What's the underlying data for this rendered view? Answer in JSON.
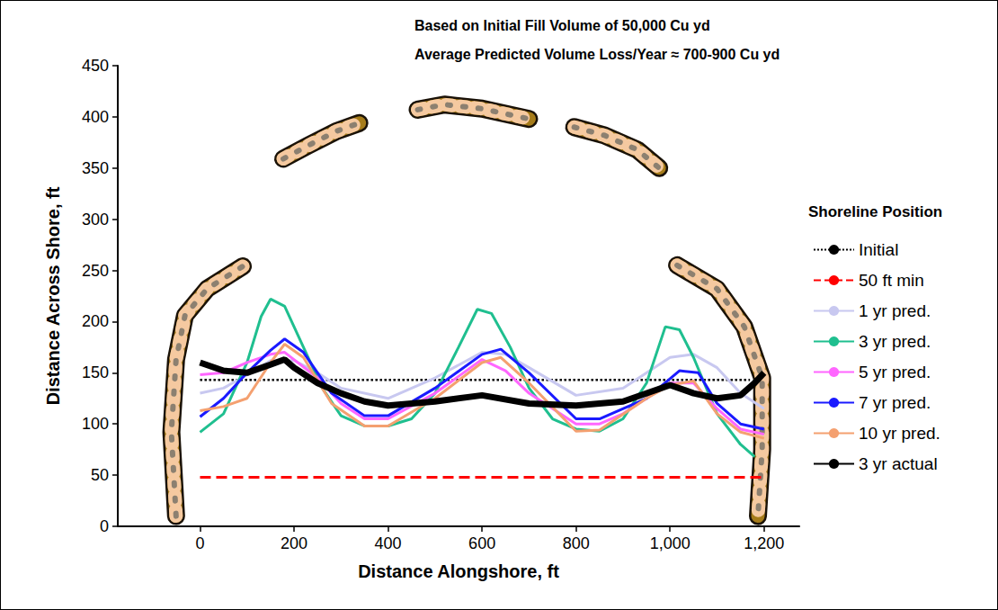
{
  "chart_data": {
    "type": "line",
    "title": "Based on Initial Fill Volume of 50,000 Cu yd",
    "subtitle": "Average Predicted Volume Loss/Year ≈ 700-900 Cu yd",
    "x_label": "Distance Alongshore, ft",
    "y_label": "Distance Across Shore, ft",
    "legend_title": "Shoreline Position",
    "legend": "right",
    "grid": false,
    "xlim": [
      -175,
      1275
    ],
    "xticks": [
      0,
      200,
      400,
      600,
      800,
      1000,
      1200
    ],
    "ylim": [
      0,
      450
    ],
    "yticks": [
      0,
      50,
      100,
      150,
      200,
      250,
      300,
      350,
      400,
      450
    ],
    "series": [
      {
        "name": "Initial",
        "color": "#000000",
        "line_style": "dotted",
        "x": [
          0,
          1170
        ],
        "values": [
          143,
          143
        ]
      },
      {
        "name": "50 ft min",
        "color": "#ff0000",
        "line_style": "dashed",
        "x": [
          0,
          1200
        ],
        "values": [
          48,
          48
        ]
      },
      {
        "name": "1 yr pred.",
        "color": "#c8c8f0",
        "line_style": "solid",
        "x": [
          0,
          50,
          100,
          150,
          200,
          250,
          300,
          400,
          500,
          600,
          650,
          700,
          800,
          900,
          1000,
          1050,
          1100,
          1150,
          1200
        ],
        "values": [
          130,
          135,
          148,
          162,
          162,
          150,
          135,
          125,
          145,
          170,
          168,
          155,
          128,
          135,
          165,
          168,
          155,
          130,
          115
        ]
      },
      {
        "name": "3 yr pred.",
        "color": "#1fbf8f",
        "line_style": "solid",
        "x": [
          0,
          50,
          100,
          130,
          150,
          180,
          220,
          260,
          300,
          350,
          400,
          450,
          500,
          550,
          590,
          620,
          660,
          700,
          750,
          800,
          850,
          900,
          950,
          990,
          1020,
          1050,
          1100,
          1150,
          1180
        ],
        "values": [
          92,
          110,
          160,
          205,
          222,
          215,
          175,
          135,
          108,
          98,
          98,
          105,
          130,
          175,
          212,
          208,
          175,
          135,
          105,
          95,
          93,
          105,
          140,
          195,
          192,
          165,
          110,
          80,
          68
        ]
      },
      {
        "name": "5 yr pred.",
        "color": "#ff66ff",
        "line_style": "solid",
        "x": [
          0,
          50,
          100,
          150,
          180,
          250,
          300,
          350,
          400,
          500,
          600,
          650,
          700,
          800,
          850,
          900,
          1000,
          1050,
          1100,
          1150,
          1200
        ],
        "values": [
          148,
          150,
          160,
          168,
          170,
          145,
          120,
          105,
          105,
          130,
          163,
          152,
          130,
          100,
          100,
          110,
          140,
          140,
          115,
          95,
          90
        ]
      },
      {
        "name": "7 yr pred.",
        "color": "#1a1aff",
        "line_style": "solid",
        "x": [
          0,
          50,
          100,
          150,
          180,
          220,
          280,
          350,
          400,
          500,
          600,
          640,
          700,
          800,
          850,
          950,
          1020,
          1060,
          1100,
          1150,
          1200
        ],
        "values": [
          107,
          125,
          150,
          172,
          183,
          170,
          130,
          108,
          108,
          135,
          168,
          173,
          150,
          105,
          105,
          125,
          152,
          150,
          120,
          100,
          95
        ]
      },
      {
        "name": "10 yr pred.",
        "color": "#f4a070",
        "line_style": "solid",
        "x": [
          0,
          50,
          100,
          150,
          180,
          220,
          280,
          350,
          400,
          500,
          600,
          640,
          700,
          800,
          850,
          950,
          1000,
          1050,
          1100,
          1150,
          1200
        ],
        "values": [
          113,
          117,
          125,
          160,
          178,
          165,
          120,
          98,
          98,
          125,
          160,
          165,
          140,
          93,
          94,
          125,
          138,
          142,
          110,
          92,
          86
        ]
      },
      {
        "name": "3 yr actual",
        "color": "#000000",
        "line_style": "solid",
        "x": [
          0,
          50,
          100,
          150,
          180,
          200,
          250,
          300,
          350,
          400,
          500,
          600,
          700,
          800,
          900,
          1000,
          1050,
          1100,
          1150,
          1180,
          1200
        ],
        "values": [
          160,
          152,
          150,
          158,
          163,
          155,
          140,
          130,
          122,
          118,
          122,
          128,
          120,
          118,
          122,
          138,
          130,
          125,
          128,
          140,
          150
        ]
      }
    ],
    "structures": [
      {
        "x": [
          -51,
          -61,
          -51,
          -32,
          15,
          91
        ],
        "y": [
          10,
          92,
          163,
          206,
          232,
          254
        ]
      },
      {
        "x": [
          177,
          230,
          290,
          339
        ],
        "y": [
          359,
          372,
          386,
          394
        ]
      },
      {
        "x": [
          463,
          520,
          600,
          700
        ],
        "y": [
          407,
          412,
          408,
          398
        ]
      },
      {
        "x": [
          796,
          860,
          930,
          977
        ],
        "y": [
          390,
          382,
          368,
          350
        ]
      },
      {
        "x": [
          1015,
          1100,
          1158,
          1196,
          1196,
          1187
        ],
        "y": [
          255,
          232,
          195,
          145,
          75,
          10
        ]
      }
    ]
  }
}
